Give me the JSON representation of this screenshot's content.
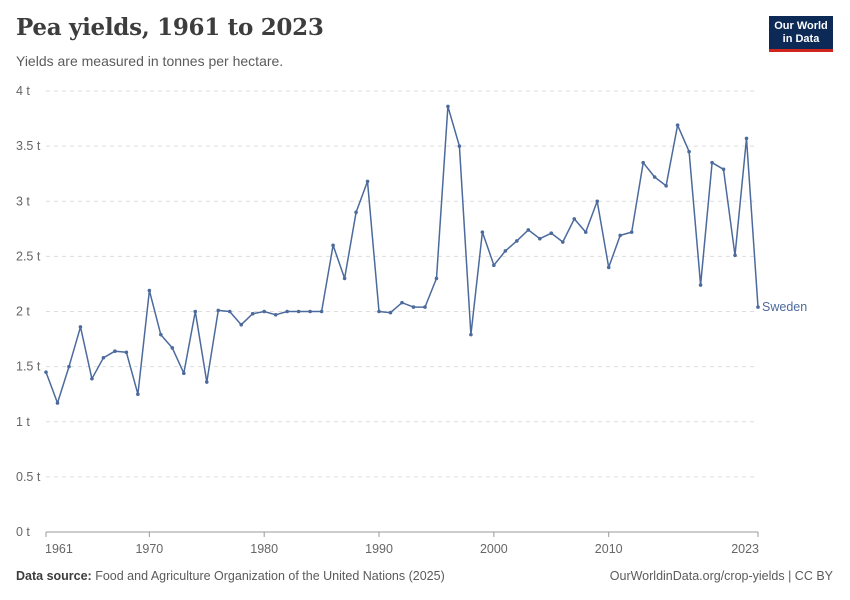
{
  "header": {
    "title": "Pea yields, 1961 to 2023",
    "subtitle": "Yields are measured in tonnes per hectare."
  },
  "logo": {
    "line1": "Our World",
    "line2": "in Data",
    "bg_color": "#0d2a57",
    "accent_color": "#ce261e"
  },
  "footer": {
    "source_label": "Data source:",
    "source_text": "Food and Agriculture Organization of the United Nations (2025)",
    "right_text": "OurWorldinData.org/crop-yields | CC BY"
  },
  "chart_data": {
    "type": "line",
    "title": "Pea yields, 1961 to 2023",
    "ylabel": "Yields are measured in tonnes per hectare.",
    "xlabel": "",
    "xlim": [
      1961,
      2023
    ],
    "ylim": [
      0,
      4
    ],
    "x_ticks": [
      1961,
      1970,
      1980,
      1990,
      2000,
      2010,
      2023
    ],
    "y_ticks": [
      0,
      0.5,
      1,
      1.5,
      2,
      2.5,
      3,
      3.5,
      4
    ],
    "y_tick_labels": [
      "0 t",
      "0.5 t",
      "1 t",
      "1.5 t",
      "2 t",
      "2.5 t",
      "3 t",
      "3.5 t",
      "4 t"
    ],
    "grid": "horizontal dashed",
    "series": [
      {
        "name": "Sweden",
        "color": "#4c6a9c",
        "x": [
          1961,
          1962,
          1963,
          1964,
          1965,
          1966,
          1967,
          1968,
          1969,
          1970,
          1971,
          1972,
          1973,
          1974,
          1975,
          1976,
          1977,
          1978,
          1979,
          1980,
          1981,
          1982,
          1983,
          1984,
          1985,
          1986,
          1987,
          1988,
          1989,
          1990,
          1991,
          1992,
          1993,
          1994,
          1995,
          1996,
          1997,
          1998,
          1999,
          2000,
          2001,
          2002,
          2003,
          2004,
          2005,
          2006,
          2007,
          2008,
          2009,
          2010,
          2011,
          2012,
          2013,
          2014,
          2015,
          2016,
          2017,
          2018,
          2019,
          2020,
          2021,
          2022,
          2023
        ],
        "values": [
          1.45,
          1.17,
          1.5,
          1.86,
          1.39,
          1.58,
          1.64,
          1.63,
          1.25,
          2.19,
          1.79,
          1.67,
          1.44,
          2.0,
          1.36,
          2.01,
          2.0,
          1.88,
          1.98,
          2.0,
          1.97,
          2.0,
          2.0,
          2.0,
          2.0,
          2.6,
          2.3,
          2.9,
          3.18,
          2.0,
          1.99,
          2.08,
          2.04,
          2.04,
          2.3,
          3.86,
          3.5,
          1.79,
          2.72,
          2.42,
          2.55,
          2.64,
          2.74,
          2.66,
          2.71,
          2.63,
          2.84,
          2.72,
          3.0,
          2.4,
          2.69,
          2.72,
          3.35,
          3.22,
          3.14,
          3.69,
          3.45,
          2.24,
          3.35,
          3.29,
          2.51,
          3.57,
          2.04
        ]
      }
    ]
  }
}
